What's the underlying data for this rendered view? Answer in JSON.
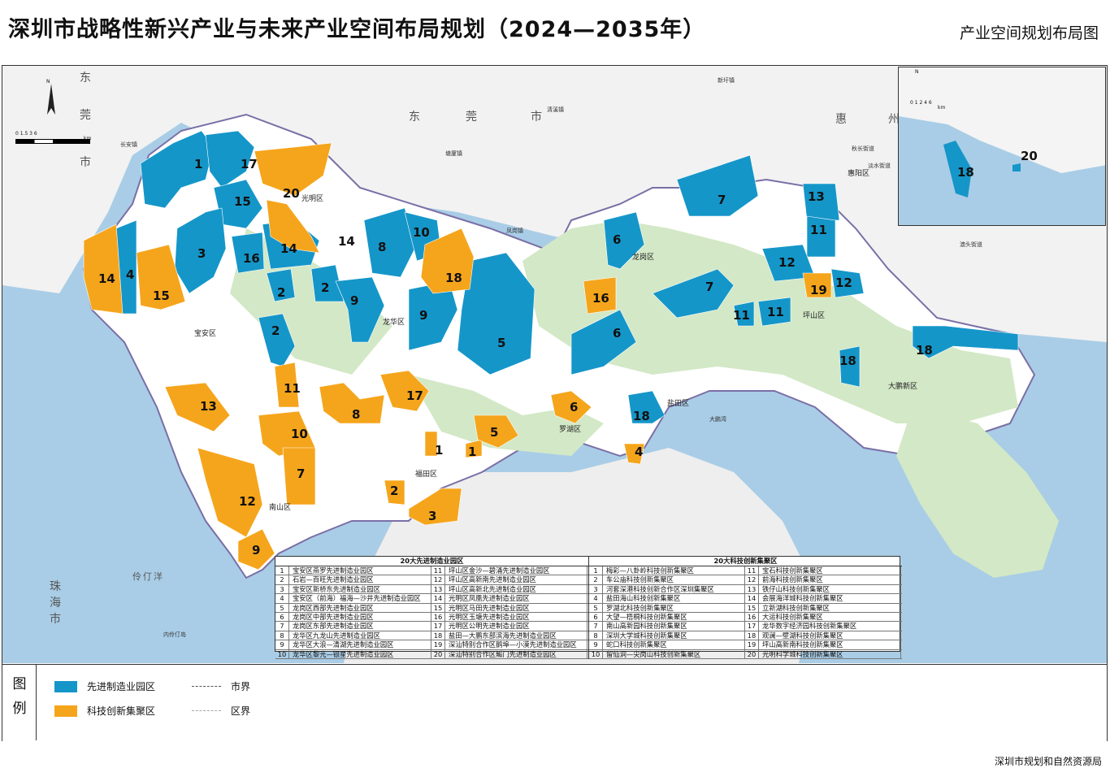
{
  "header": {
    "title": "深圳市战略性新兴产业与未来产业空间布局规划（2024—2035年）",
    "subtitle": "产业空间规划布局图"
  },
  "colors": {
    "blue": "#1596c9",
    "orange": "#f5a51c",
    "green": "#d3e8c6",
    "white": "#ffffff",
    "sea": "#a9cde6"
  },
  "map_labels": {
    "districts": [
      "光明区",
      "龙华区",
      "龙岗区",
      "坪山区",
      "宝安区",
      "福田区",
      "罗湖区",
      "南山区",
      "盐田区",
      "大鹏新区",
      "惠阳区"
    ],
    "big_regions": [
      "东",
      "莞",
      "市",
      "东",
      "莞",
      "市",
      "惠",
      "州",
      "珠",
      "海",
      "市"
    ],
    "places": [
      "长安镇",
      "清溪镇",
      "新圩镇",
      "凤岗镇",
      "秋长街道",
      "淡水街道",
      "塘厦镇",
      "澳头街道",
      "伶仃洋",
      "内伶仃岛",
      "大鹏湾"
    ],
    "blue_numbers": [
      "1",
      "17",
      "15",
      "3",
      "16",
      "14",
      "2",
      "2",
      "9",
      "8",
      "10",
      "14",
      "9",
      "5",
      "2",
      "6",
      "7",
      "13",
      "11",
      "12",
      "12",
      "7",
      "11",
      "11",
      "6",
      "18",
      "4",
      "18",
      "19"
    ],
    "orange_numbers": [
      "20",
      "14",
      "15",
      "18",
      "16",
      "19",
      "11",
      "13",
      "8",
      "17",
      "6",
      "10",
      "7",
      "1",
      "1",
      "5",
      "12",
      "2",
      "3",
      "4",
      "9",
      "20"
    ]
  },
  "scalebar": {
    "ticks": "0 1.5 3 6",
    "unit": "km",
    "north": "N"
  },
  "inset_scalebar": {
    "ticks": "0 1 2 4 6",
    "unit": "km",
    "north": "N"
  },
  "table_left": {
    "heading": "20大先进制造业园区",
    "rows": [
      {
        "n": "1",
        "t": "宝安区燕罗先进制造业园区",
        "n2": "11",
        "t2": "坪山区金沙—碧涌先进制造业园区"
      },
      {
        "n": "2",
        "t": "石岩—百旺先进制造业园区",
        "n2": "12",
        "t2": "坪山区高新南先进制造业园区"
      },
      {
        "n": "3",
        "t": "宝安区新桥东先进制造业园区",
        "n2": "13",
        "t2": "坪山区高新北先进制造业园区"
      },
      {
        "n": "4",
        "t": "宝安区（前海）福海—沙井先进制造业园区",
        "n2": "14",
        "t2": "光明区凤凰先进制造业园区"
      },
      {
        "n": "5",
        "t": "龙岗区西部先进制造业园区",
        "n2": "15",
        "t2": "光明区马田先进制造业园区"
      },
      {
        "n": "6",
        "t": "龙岗区中部先进制造业园区",
        "n2": "16",
        "t2": "光明区玉塘先进制造业园区"
      },
      {
        "n": "7",
        "t": "龙岗区东部先进制造业园区",
        "n2": "17",
        "t2": "光明区公明先进制造业园区"
      },
      {
        "n": "8",
        "t": "龙华区九龙山先进制造业园区",
        "n2": "18",
        "t2": "盐田—大鹏东部滨海先进制造业园区"
      },
      {
        "n": "9",
        "t": "龙华区大浪—清湖先进制造业园区",
        "n2": "19",
        "t2": "深汕特别合作区鹅埠—小漠先进制造业园区"
      },
      {
        "n": "10",
        "t": "龙华区黎光—银星先进制造业园区",
        "n2": "20",
        "t2": "深汕特别合作区鲘门先进制造业园区"
      }
    ]
  },
  "table_right": {
    "heading": "20大科技创新集聚区",
    "rows": [
      {
        "n": "1",
        "t": "梅彩—八卦岭科技创新集聚区",
        "n2": "11",
        "t2": "宝石科技创新集聚区"
      },
      {
        "n": "2",
        "t": "车公庙科技创新集聚区",
        "n2": "12",
        "t2": "前海科技创新集聚区"
      },
      {
        "n": "3",
        "t": "河套深港科技创新合作区深圳集聚区",
        "n2": "13",
        "t2": "铁仔山科技创新集聚区"
      },
      {
        "n": "4",
        "t": "盐田海山科技创新集聚区",
        "n2": "14",
        "t2": "会展海洋城科技创新集聚区"
      },
      {
        "n": "5",
        "t": "罗湖北科技创新集聚区",
        "n2": "15",
        "t2": "立新湖科技创新集聚区"
      },
      {
        "n": "6",
        "t": "大望—梧桐科技创新集聚区",
        "n2": "16",
        "t2": "大运科技创新集聚区"
      },
      {
        "n": "7",
        "t": "南山高新园科技创新集聚区",
        "n2": "17",
        "t2": "龙华数字经济园科技创新集聚区"
      },
      {
        "n": "8",
        "t": "深圳大学城科技创新集聚区",
        "n2": "18",
        "t2": "观澜—壁湖科技创新集聚区"
      },
      {
        "n": "9",
        "t": "蛇口科技创新集聚区",
        "n2": "19",
        "t2": "坪山高新南科技创新集聚区"
      },
      {
        "n": "10",
        "t": "留仙洞—尖岗山科技创新集聚区",
        "n2": "20",
        "t2": "光明科学城科技创新集聚区"
      }
    ]
  },
  "legend": {
    "title1": "图",
    "title2": "例",
    "blue_label": "先进制造业园区",
    "orange_label": "科技创新集聚区",
    "city_line": "市界",
    "district_line": "区界"
  },
  "credit": "深圳市规划和自然资源局"
}
